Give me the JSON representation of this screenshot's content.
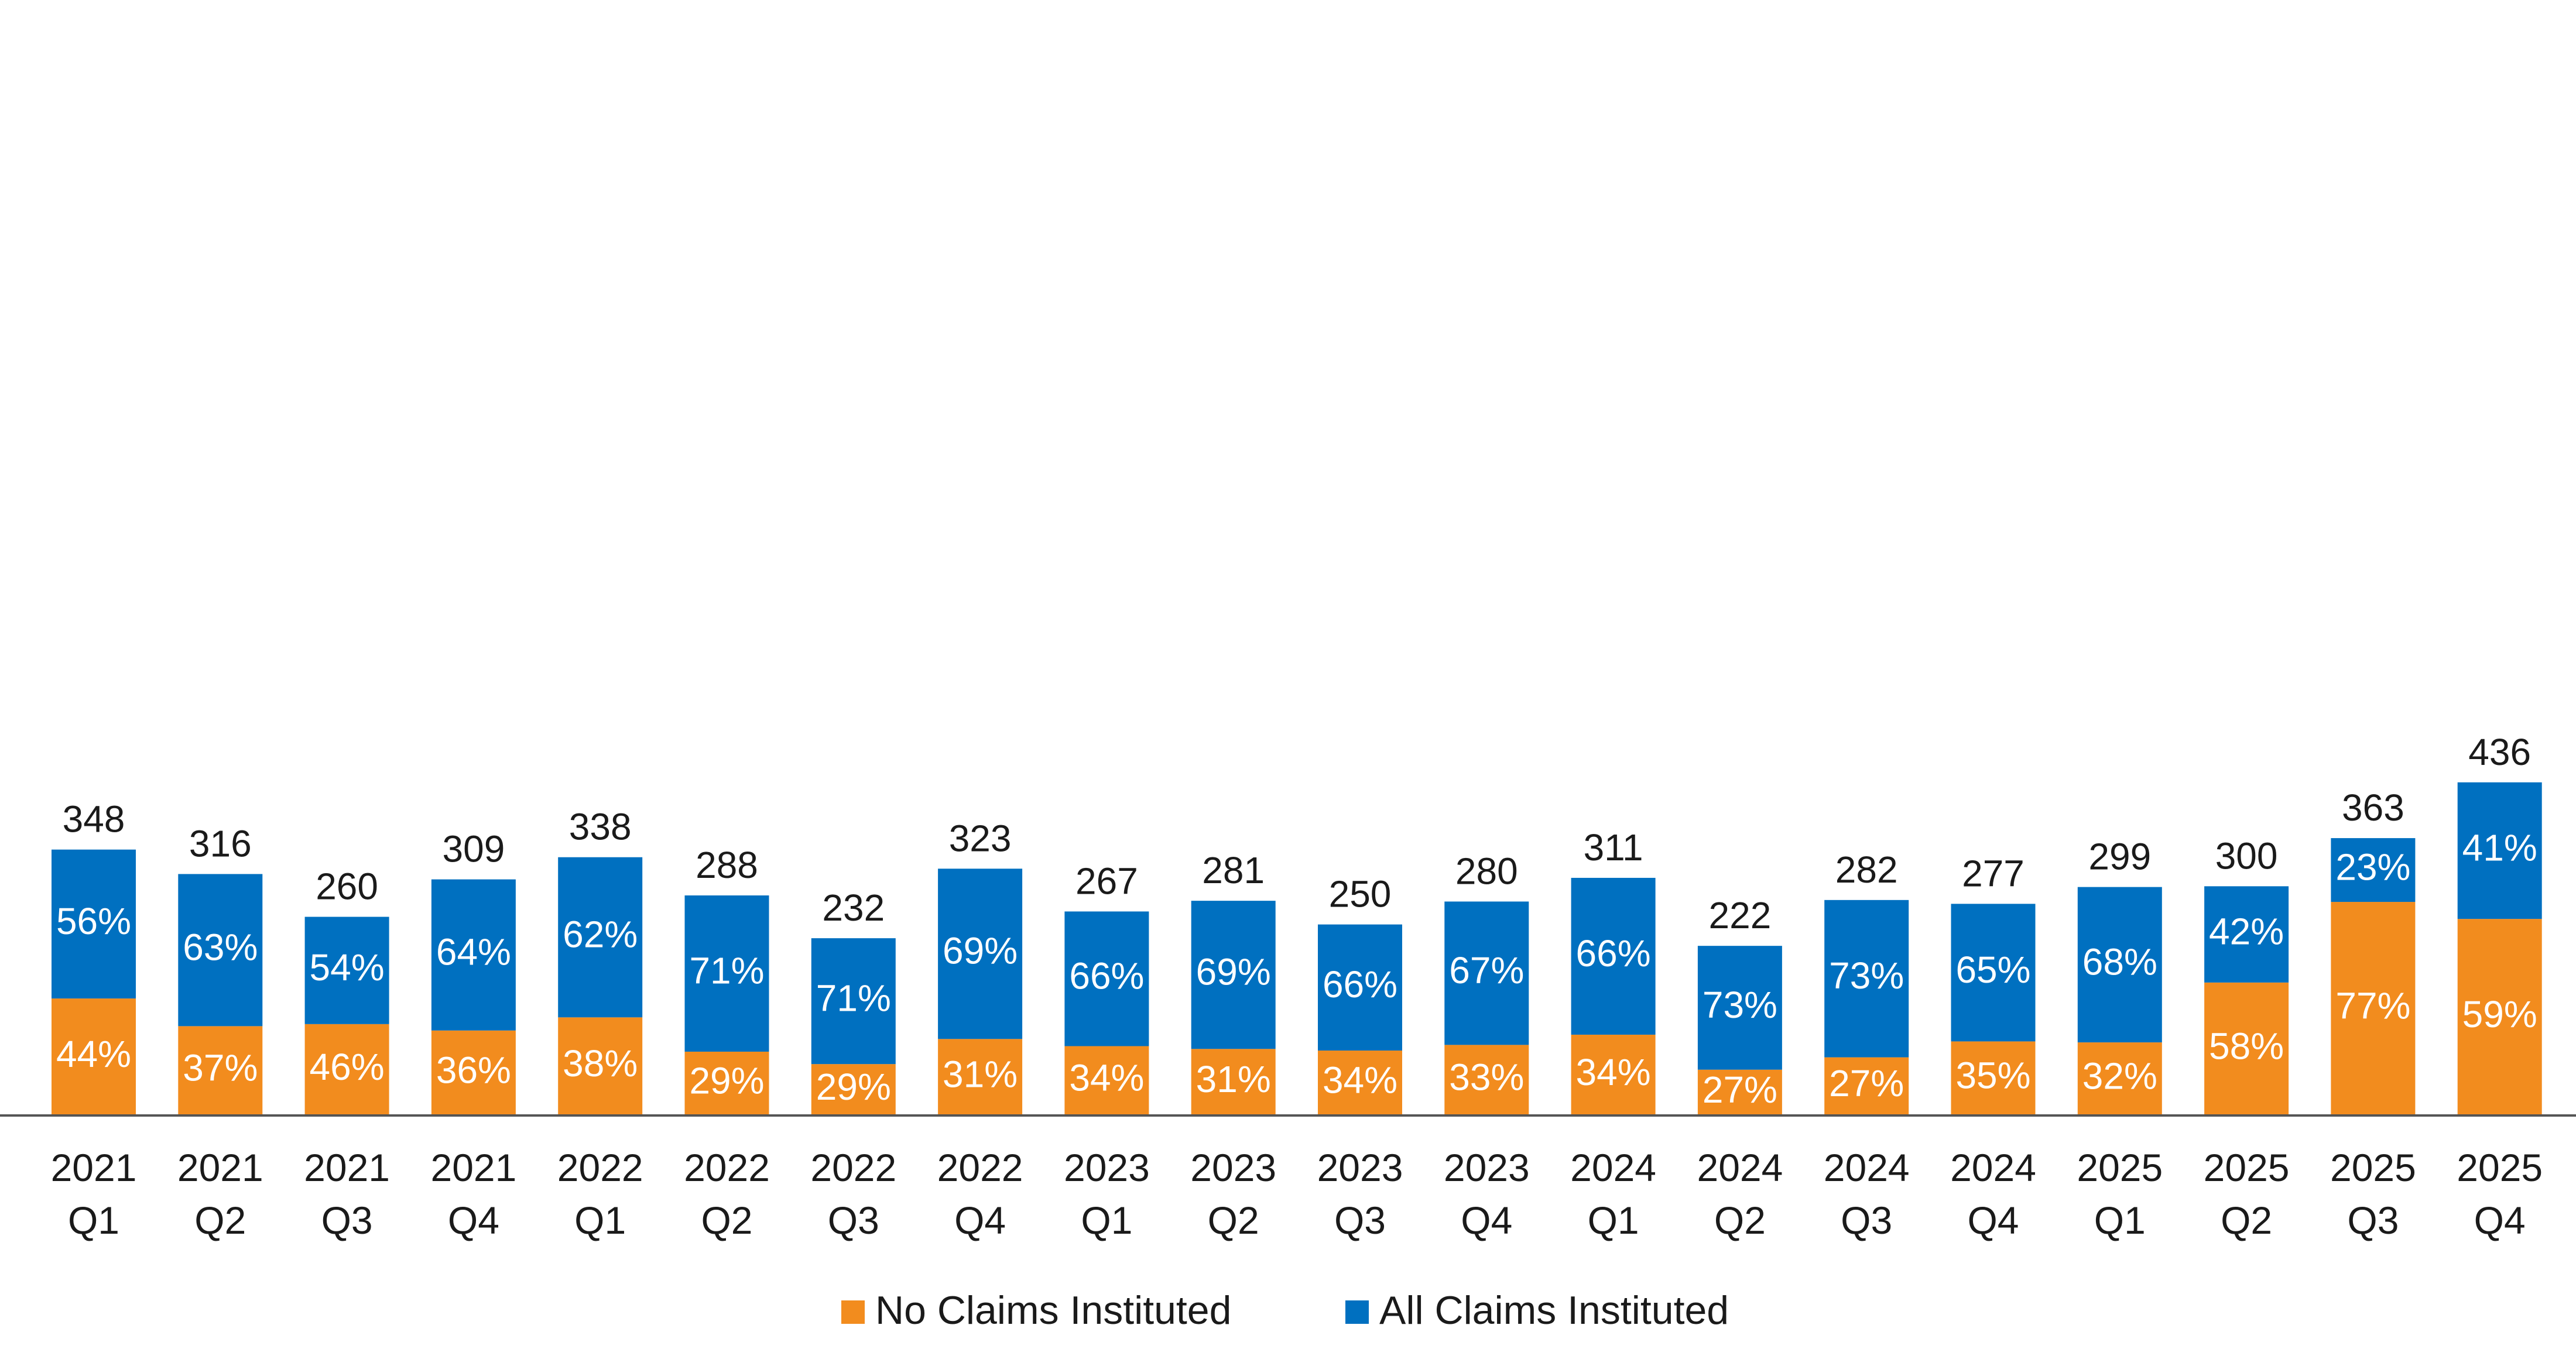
{
  "chart_data": {
    "type": "bar",
    "stacked": true,
    "title": "",
    "xlabel": "",
    "ylabel": "",
    "ylim": [
      0,
      450
    ],
    "grid": false,
    "legend_position": "bottom",
    "categories": [
      [
        "2021",
        "Q1"
      ],
      [
        "2021",
        "Q2"
      ],
      [
        "2021",
        "Q3"
      ],
      [
        "2021",
        "Q4"
      ],
      [
        "2022",
        "Q1"
      ],
      [
        "2022",
        "Q2"
      ],
      [
        "2022",
        "Q3"
      ],
      [
        "2022",
        "Q4"
      ],
      [
        "2023",
        "Q1"
      ],
      [
        "2023",
        "Q2"
      ],
      [
        "2023",
        "Q3"
      ],
      [
        "2023",
        "Q4"
      ],
      [
        "2024",
        "Q1"
      ],
      [
        "2024",
        "Q2"
      ],
      [
        "2024",
        "Q3"
      ],
      [
        "2024",
        "Q4"
      ],
      [
        "2025",
        "Q1"
      ],
      [
        "2025",
        "Q2"
      ],
      [
        "2025",
        "Q3"
      ],
      [
        "2025",
        "Q4"
      ]
    ],
    "totals": [
      348,
      316,
      260,
      309,
      338,
      288,
      232,
      323,
      267,
      281,
      250,
      280,
      311,
      222,
      282,
      277,
      299,
      300,
      363,
      436
    ],
    "series": [
      {
        "name": "No Claims Instituted",
        "color": "#F28C1E",
        "percent_labels": [
          "44%",
          "37%",
          "46%",
          "36%",
          "38%",
          "29%",
          "29%",
          "31%",
          "34%",
          "31%",
          "34%",
          "33%",
          "34%",
          "27%",
          "27%",
          "35%",
          "32%",
          "58%",
          "77%",
          "59%"
        ],
        "percents": [
          44,
          37,
          46,
          36,
          38,
          29,
          29,
          31,
          34,
          31,
          34,
          33,
          34,
          27,
          27,
          35,
          32,
          58,
          77,
          59
        ]
      },
      {
        "name": "All Claims Instituted",
        "color": "#0070C0",
        "percent_labels": [
          "56%",
          "63%",
          "54%",
          "64%",
          "62%",
          "71%",
          "71%",
          "69%",
          "66%",
          "69%",
          "66%",
          "67%",
          "66%",
          "73%",
          "73%",
          "65%",
          "68%",
          "42%",
          "23%",
          "41%"
        ],
        "percents": [
          56,
          63,
          54,
          64,
          62,
          71,
          71,
          69,
          66,
          69,
          66,
          67,
          66,
          73,
          73,
          65,
          68,
          42,
          23,
          41
        ]
      }
    ]
  }
}
